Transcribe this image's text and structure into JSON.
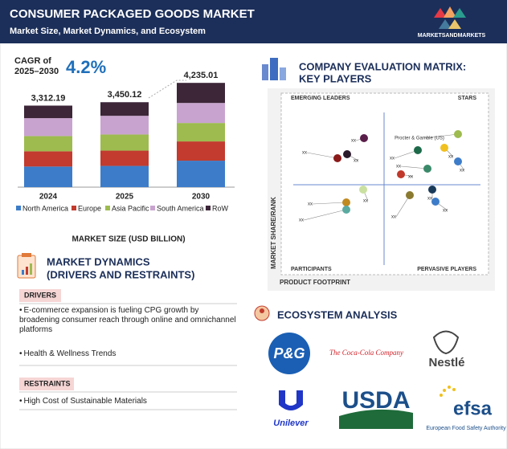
{
  "header": {
    "title": "CONSUMER PACKAGED GOODS MARKET",
    "subtitle": "Market Size, Market Dynamics, and Ecosystem",
    "logo": "MARKETSANDMARKETS"
  },
  "cagr": {
    "label_line1": "CAGR of",
    "label_line2": "2025–2030",
    "value": "4.2%"
  },
  "chart_data": {
    "type": "bar",
    "stacked": true,
    "categories": [
      "2024",
      "2025",
      "2030"
    ],
    "series": [
      {
        "name": "North America",
        "color": "#3d7cc9",
        "values": [
          837,
          862,
          1075
        ]
      },
      {
        "name": "Europe",
        "color": "#c23b2e",
        "values": [
          619,
          621,
          782
        ]
      },
      {
        "name": "Asia Pacific",
        "color": "#9dbb4f",
        "values": [
          619,
          656,
          749
        ]
      },
      {
        "name": "South America",
        "color": "#c9a3cf",
        "values": [
          728,
          759,
          814
        ]
      },
      {
        "name": "RoW",
        "color": "#3c2638",
        "values": [
          509,
          552,
          815
        ]
      }
    ],
    "totals": [
      3312.19,
      3450.12,
      4235.01
    ],
    "total_labels": [
      "3,312.19",
      "3,450.12",
      "4,235.01"
    ],
    "ylim": [
      0,
      4600
    ],
    "legend": "bottom",
    "xlabel": "MARKET SIZE (USD BILLION)"
  },
  "dynamics": {
    "title_line1": "MARKET DYNAMICS",
    "title_line2": "(DRIVERS AND RESTRAINTS)",
    "drivers_label": "DRIVERS",
    "drivers": [
      "E-commerce expansion is fueling CPG growth by broadening consumer reach through online and omnichannel platforms",
      "Health & Wellness Trends"
    ],
    "restraints_label": "RESTRAINTS",
    "restraints": [
      "High Cost of Sustainable Materials"
    ]
  },
  "matrix": {
    "title_line1": "COMPANY EVALUATION MATRIX:",
    "title_line2": "KEY PLAYERS",
    "quadrants": {
      "top_left": "EMERGING LEADERS",
      "top_right": "STARS",
      "bottom_left": "PARTICIPANTS",
      "bottom_right": "PERVASIVE PLAYERS"
    },
    "y_label": "MARKET SHARE/RANK",
    "x_label": "PRODUCT FOOTPRINT",
    "points": [
      {
        "label": "xx",
        "color": "#5a1e4a"
      },
      {
        "label": "xx",
        "color": "#2a1a2a"
      },
      {
        "label": "xx",
        "color": "#8b1a1a"
      },
      {
        "label": "Procter & Gamble (US)",
        "color": "#9dbb4f"
      },
      {
        "label": "xx",
        "color": "#f0c020"
      },
      {
        "label": "xx",
        "color": "#1d6a4a"
      },
      {
        "label": "xx",
        "color": "#3d7cc9"
      },
      {
        "label": "xx",
        "color": "#3a8a6a"
      },
      {
        "label": "xx",
        "color": "#c0392b"
      },
      {
        "label": "xx",
        "color": "#c9e0a0"
      },
      {
        "label": "xx",
        "color": "#c08a20"
      },
      {
        "label": "xx",
        "color": "#5aaaa0"
      },
      {
        "label": "xx",
        "color": "#8a7a30"
      },
      {
        "label": "xx",
        "color": "#1a3a5a"
      },
      {
        "label": "xx",
        "color": "#3d7cc9"
      }
    ]
  },
  "ecosystem": {
    "title": "ECOSYSTEM ANALYSIS",
    "logos": {
      "pg": "P&G",
      "coca_cola": "The Coca-Cola Company",
      "nestle": "Nestlé",
      "unilever": "Unilever",
      "usda": "USDA",
      "efsa": "efsa",
      "efsa_full": "European Food Safety Authority"
    }
  }
}
